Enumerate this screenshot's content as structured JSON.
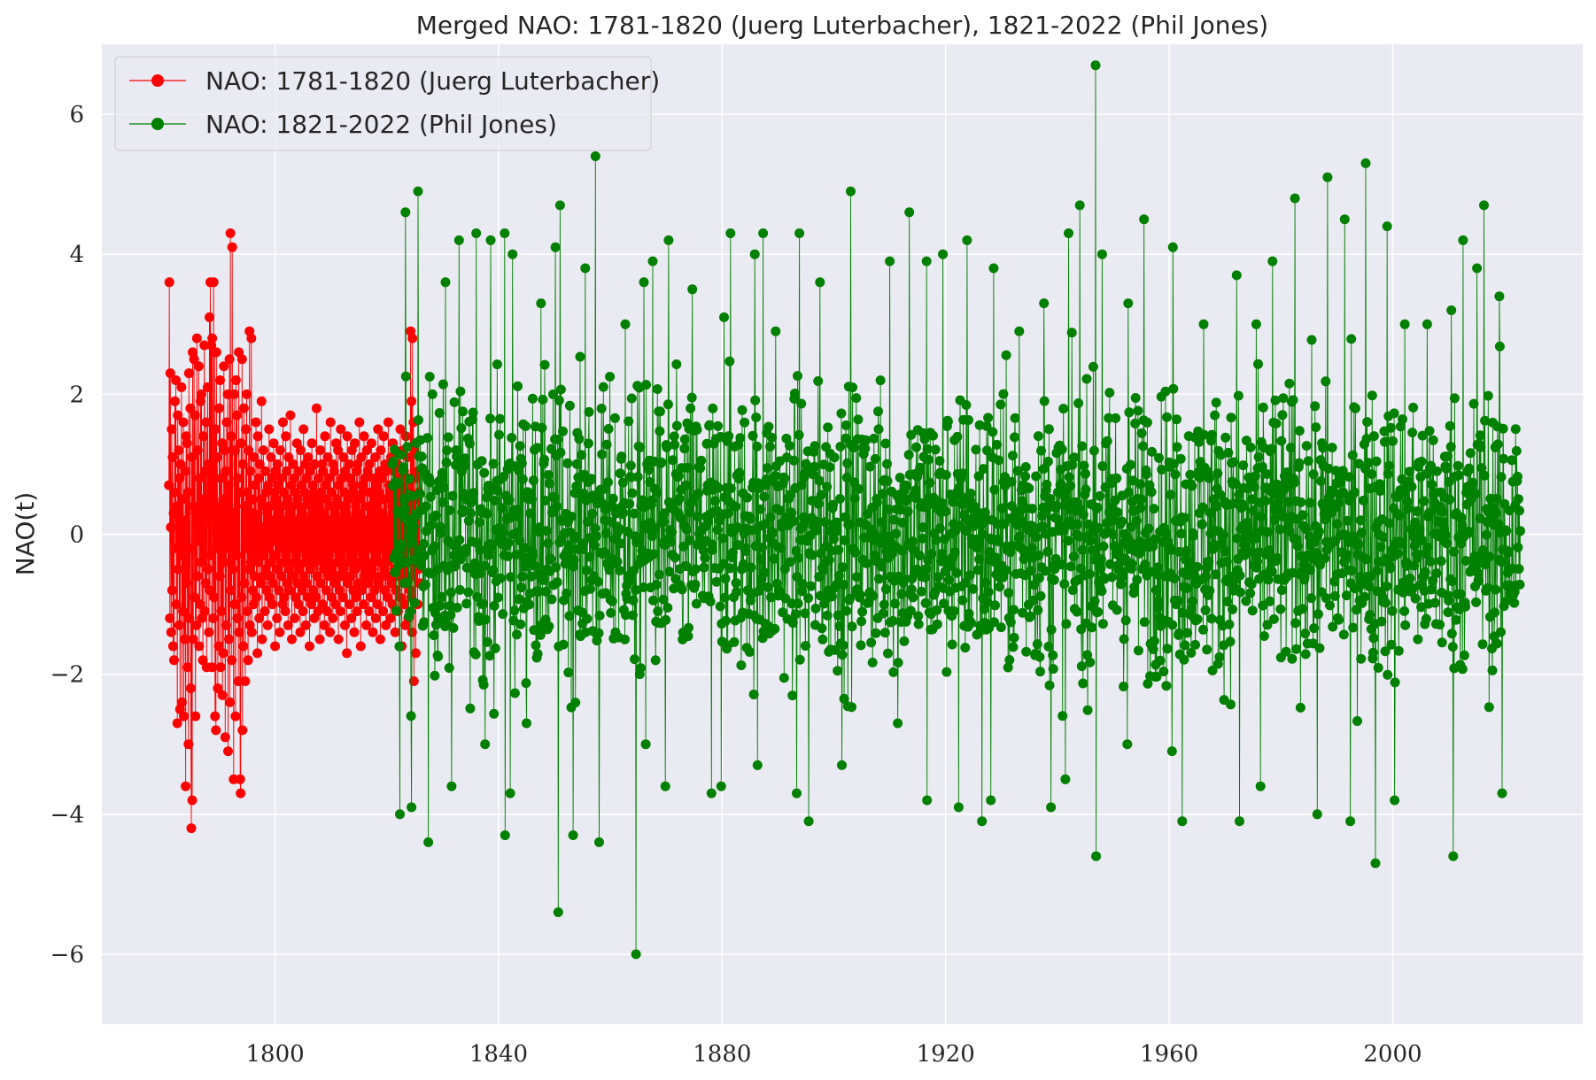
{
  "chart_data": {
    "type": "line",
    "title": "Merged NAO: 1781-1820 (Juerg Luterbacher), 1821-2022 (Phil Jones)",
    "xlabel": "",
    "ylabel": "NAO(t)",
    "xlim": [
      1769,
      2034
    ],
    "ylim": [
      -7,
      7
    ],
    "x_ticks": [
      1800,
      1840,
      1880,
      1920,
      1960,
      2000
    ],
    "y_ticks": [
      6,
      4,
      2,
      0,
      -2,
      -4,
      -6
    ],
    "y_tick_labels": [
      "6",
      "4",
      "2",
      "0",
      "−2",
      "−4",
      "−6"
    ],
    "grid": true,
    "legend_position": "top-left",
    "series": [
      {
        "name": "NAO: 1781-1820 (Juerg Luterbacher)",
        "color": "#ff0000",
        "x_start": 1781,
        "x_step": 0.0833333,
        "values": [
          0.7,
          3.6,
          -1.2,
          2.3,
          0.1,
          -1.4,
          1.5,
          -0.8,
          1.1,
          -1.6,
          0.3,
          -1.8,
          0.6,
          1.9,
          -0.2,
          2.2,
          -1.0,
          0.4,
          -2.7,
          1.7,
          -0.5,
          1.2,
          -1.3,
          0.8,
          -2.5,
          1.0,
          -0.3,
          2.1,
          -2.4,
          0.5,
          -1.1,
          1.6,
          -2.6,
          0.2,
          -1.5,
          0.9,
          -3.6,
          1.4,
          -0.7,
          1.3,
          -1.9,
          0.6,
          -3.0,
          2.3,
          -1.2,
          -0.2,
          1.8,
          -2.2,
          -4.2,
          1.1,
          -3.8,
          2.6,
          -1.5,
          0.4,
          2.5,
          -0.9,
          1.7,
          -2.6,
          0.3,
          -1.3,
          2.8,
          -0.6,
          1.2,
          -0.1,
          2.4,
          -1.6,
          0.8,
          -1.0,
          1.9,
          -0.4,
          2.0,
          -1.2,
          0.5,
          -1.8,
          1.4,
          -0.3,
          2.7,
          -1.1,
          0.9,
          -0.7,
          1.6,
          -1.9,
          0.2,
          2.1,
          -0.5,
          1.0,
          -1.4,
          3.1,
          -0.8,
          3.6,
          -0.3,
          2.7,
          -1.9,
          2.8,
          0.6,
          -1.2,
          3.6,
          -0.9,
          2.6,
          -2.6,
          1.5,
          -2.8,
          2.6,
          -0.2,
          1.1,
          -2.2,
          0.4,
          -1.6,
          1.8,
          -0.6,
          2.2,
          -1.9,
          0.8,
          -1.1,
          1.3,
          -2.3,
          0.5,
          -1.7,
          2.4,
          -0.4,
          1.2,
          -2.9,
          0.9,
          -1.3,
          1.6,
          -0.2,
          2.0,
          -3.1,
          0.7,
          -1.5,
          2.5,
          -2.4,
          4.3,
          -0.8,
          1.4,
          -1.8,
          4.1,
          -0.5,
          0.3,
          -3.5,
          2.0,
          -1.0,
          1.2,
          -2.6,
          2.2,
          -0.3,
          1.7,
          -1.2,
          0.8,
          -2.1,
          2.6,
          -1.4,
          0.6,
          -3.5,
          -3.7,
          1.3,
          -0.9,
          2.5,
          -2.8,
          1.0,
          -1.6,
          1.8,
          -0.7,
          0.4,
          -2.1,
          1.5,
          -0.2,
          2.0,
          -1.1,
          0.6,
          -1.8,
          1.2,
          -0.5,
          2.9,
          -1.3,
          0.9,
          -0.4,
          2.8,
          -1.4,
          0.5,
          -0.8,
          0.3,
          -1.0,
          1.1,
          -0.6,
          0.7,
          -0.3,
          1.6,
          -0.9,
          0.2,
          -1.7,
          1.4,
          -0.4,
          0.8,
          -1.2,
          1.0,
          -0.2,
          0.5,
          -0.7,
          1.9,
          -1.5,
          0.1,
          -0.6,
          1.2,
          -0.3,
          0.4,
          -1.1,
          0.9,
          -0.5,
          0.6,
          -0.8,
          0.3,
          -1.3,
          0.7,
          -0.2,
          1.5,
          -0.9,
          0.4,
          -0.6,
          1.1,
          -0.4,
          0.8,
          -1.0,
          0.2,
          -0.7,
          1.3,
          -0.1,
          0.6,
          -1.6,
          0.9,
          -0.3,
          0.5,
          -1.2,
          1.0,
          -0.5,
          0.7,
          -0.8,
          0.3,
          -1.4,
          1.2,
          -0.2,
          0.8,
          -0.6,
          0.4,
          -1.0,
          1.6,
          -0.4,
          0.6,
          -0.9,
          0.2,
          -1.1,
          1.4,
          -0.3,
          0.9,
          -0.7,
          0.5,
          -1.3,
          1.1,
          -0.5,
          0.3,
          -0.8,
          1.7,
          -0.2,
          0.7,
          -1.5,
          0.4,
          -0.6,
          1.0,
          -0.4,
          0.8,
          -1.2,
          0.6,
          -0.9,
          0.2,
          -0.3,
          1.3,
          -0.7,
          0.5,
          -1.0,
          0.9,
          -0.5,
          0.4,
          -1.4,
          1.2,
          -0.2,
          0.7,
          -0.8,
          0.3,
          -1.1,
          1.5,
          -0.6,
          0.6,
          -0.4,
          1.0,
          -1.3,
          0.8,
          -0.7,
          0.2,
          -0.9,
          1.1,
          -0.3,
          0.5,
          -1.6,
          0.9,
          -0.5,
          0.4,
          -1.0,
          1.3,
          -0.2,
          0.7,
          -0.8,
          0.6,
          -1.2,
          1.0,
          -0.4,
          0.3,
          -0.9,
          1.8,
          -0.6,
          0.5,
          -1.1,
          0.8,
          -0.3,
          0.4,
          -1.5,
          1.2,
          -0.7,
          0.6,
          -0.2,
          1.0,
          -1.0,
          0.9,
          -0.5,
          0.3,
          -1.3,
          1.4,
          -0.4,
          0.7,
          -0.8,
          0.5,
          -1.1,
          1.1,
          -0.6,
          0.8,
          -0.3,
          0.2,
          -1.4,
          1.6,
          -0.5,
          0.6,
          -0.9,
          0.4,
          -1.2,
          1.0,
          -0.2,
          0.9,
          -0.7,
          0.3,
          -1.0,
          1.3,
          -0.6,
          0.5,
          -0.4,
          1.2,
          -1.5,
          0.7,
          -0.8,
          0.2,
          -1.1,
          1.5,
          -0.3,
          0.8,
          -0.6,
          0.4,
          -0.9,
          1.1,
          -0.5,
          0.6,
          -1.3,
          0.9,
          -0.2,
          0.3,
          -1.7,
          1.4,
          -0.7,
          0.5,
          -0.4,
          1.0,
          -1.0,
          0.8,
          -0.6,
          0.2,
          -1.2,
          1.2,
          -0.3,
          0.7,
          -0.8,
          0.6,
          -1.4,
          1.3,
          -0.5,
          0.4,
          -0.9,
          0.9,
          -1.1,
          1.0,
          -0.2,
          0.5,
          -0.7,
          1.6,
          -0.4,
          0.3,
          -1.6,
          1.1,
          -0.8,
          0.7,
          -0.3,
          0.6,
          -1.0,
          1.4,
          -0.6,
          0.8,
          -0.5,
          0.2,
          -1.3,
          1.2,
          -0.4,
          0.9,
          -0.7,
          0.4,
          -1.1,
          1.0,
          -0.2,
          0.6,
          -0.9,
          1.3,
          -0.5,
          0.3,
          -1.4,
          0.8,
          -0.6,
          0.5,
          -0.8,
          1.1,
          -1.2,
          0.7,
          -0.3,
          0.4,
          -1.0,
          1.5,
          -0.7,
          0.6,
          -0.4,
          0.9,
          -1.5,
          1.2,
          -0.2,
          0.8,
          -0.6,
          0.3,
          -1.1,
          1.4,
          -0.5,
          0.5,
          -0.8,
          1.0,
          -1.3,
          0.9,
          -0.4,
          0.2,
          -0.9,
          1.6,
          -0.6,
          0.7,
          -0.3,
          0.6,
          -1.2,
          1.1,
          -0.7,
          0.4,
          -1.0,
          1.3,
          -0.2,
          0.9,
          -0.5,
          0.5,
          -1.4,
          1.2,
          -0.8,
          0.3,
          -0.6,
          1.0,
          -1.1,
          0.8,
          -0.4,
          0.6,
          -0.9,
          1.5,
          -0.3,
          0.7,
          -1.6,
          0.4,
          -0.5,
          1.2,
          -0.7,
          0.9,
          -1.0,
          0.2,
          -1.3,
          1.4,
          -0.6,
          0.6,
          -0.4,
          1.1,
          -1.2,
          0.8,
          -0.2,
          0.5,
          -0.8,
          2.9,
          -0.9,
          1.9,
          -1.4,
          2.8,
          -0.6,
          1.6,
          -2.1,
          1.2,
          -0.3,
          0.5,
          -1.7,
          0.8,
          -0.4,
          0.3,
          -1.0,
          0.9,
          -0.5,
          0.6,
          -0.7
        ]
      },
      {
        "name": "NAO: 1821-2022 (Phil Jones)",
        "color": "#008000",
        "x_start": 1821,
        "x_step": 0.0833333,
        "peaks": [
          {
            "x": 1823.3,
            "y": 4.6
          },
          {
            "x": 1825.6,
            "y": 4.9
          },
          {
            "x": 1830.5,
            "y": 3.6
          },
          {
            "x": 1832.9,
            "y": 4.2
          },
          {
            "x": 1836.0,
            "y": 4.3
          },
          {
            "x": 1838.6,
            "y": 4.2
          },
          {
            "x": 1841.1,
            "y": 4.3
          },
          {
            "x": 1842.5,
            "y": 4.0
          },
          {
            "x": 1847.6,
            "y": 3.3
          },
          {
            "x": 1850.2,
            "y": 4.1
          },
          {
            "x": 1851.0,
            "y": 4.7
          },
          {
            "x": 1855.5,
            "y": 3.8
          },
          {
            "x": 1857.3,
            "y": 5.4
          },
          {
            "x": 1862.7,
            "y": 3.0
          },
          {
            "x": 1866.0,
            "y": 3.6
          },
          {
            "x": 1867.6,
            "y": 3.9
          },
          {
            "x": 1870.4,
            "y": 4.2
          },
          {
            "x": 1874.7,
            "y": 3.5
          },
          {
            "x": 1880.3,
            "y": 3.1
          },
          {
            "x": 1881.5,
            "y": 4.3
          },
          {
            "x": 1885.8,
            "y": 4.0
          },
          {
            "x": 1887.3,
            "y": 4.3
          },
          {
            "x": 1889.6,
            "y": 2.9
          },
          {
            "x": 1893.8,
            "y": 4.3
          },
          {
            "x": 1897.5,
            "y": 3.6
          },
          {
            "x": 1903.0,
            "y": 4.9
          },
          {
            "x": 1910.0,
            "y": 3.9
          },
          {
            "x": 1913.5,
            "y": 4.6
          },
          {
            "x": 1916.6,
            "y": 3.9
          },
          {
            "x": 1919.5,
            "y": 4.0
          },
          {
            "x": 1923.8,
            "y": 4.2
          },
          {
            "x": 1928.6,
            "y": 3.8
          },
          {
            "x": 1933.2,
            "y": 2.9
          },
          {
            "x": 1937.6,
            "y": 3.3
          },
          {
            "x": 1942.0,
            "y": 4.3
          },
          {
            "x": 1944.0,
            "y": 4.7
          },
          {
            "x": 1946.8,
            "y": 6.7
          },
          {
            "x": 1948.0,
            "y": 4.0
          },
          {
            "x": 1952.7,
            "y": 3.3
          },
          {
            "x": 1955.5,
            "y": 4.5
          },
          {
            "x": 1960.7,
            "y": 4.1
          },
          {
            "x": 1966.2,
            "y": 3.0
          },
          {
            "x": 1972.1,
            "y": 3.7
          },
          {
            "x": 1975.6,
            "y": 3.0
          },
          {
            "x": 1978.5,
            "y": 3.9
          },
          {
            "x": 1982.5,
            "y": 4.8
          },
          {
            "x": 1988.3,
            "y": 5.1
          },
          {
            "x": 1991.4,
            "y": 4.5
          },
          {
            "x": 1995.2,
            "y": 5.3
          },
          {
            "x": 1999.0,
            "y": 4.4
          },
          {
            "x": 2002.2,
            "y": 3.0
          },
          {
            "x": 2006.2,
            "y": 3.0
          },
          {
            "x": 2010.5,
            "y": 3.2
          },
          {
            "x": 2012.6,
            "y": 4.2
          },
          {
            "x": 2015.1,
            "y": 3.8
          },
          {
            "x": 2016.3,
            "y": 4.7
          },
          {
            "x": 2019.1,
            "y": 3.4
          }
        ],
        "troughs": [
          {
            "x": 1822.3,
            "y": -4.0
          },
          {
            "x": 1824.4,
            "y": -3.9
          },
          {
            "x": 1827.4,
            "y": -4.4
          },
          {
            "x": 1831.6,
            "y": -3.6
          },
          {
            "x": 1837.6,
            "y": -3.0
          },
          {
            "x": 1841.2,
            "y": -4.3
          },
          {
            "x": 1842.1,
            "y": -3.7
          },
          {
            "x": 1845.0,
            "y": -2.7
          },
          {
            "x": 1850.7,
            "y": -5.4
          },
          {
            "x": 1853.3,
            "y": -4.3
          },
          {
            "x": 1858.0,
            "y": -4.4
          },
          {
            "x": 1864.6,
            "y": -6.0
          },
          {
            "x": 1866.3,
            "y": -3.0
          },
          {
            "x": 1869.8,
            "y": -3.6
          },
          {
            "x": 1878.1,
            "y": -3.7
          },
          {
            "x": 1879.8,
            "y": -3.6
          },
          {
            "x": 1886.3,
            "y": -3.3
          },
          {
            "x": 1893.3,
            "y": -3.7
          },
          {
            "x": 1895.5,
            "y": -4.1
          },
          {
            "x": 1901.4,
            "y": -3.3
          },
          {
            "x": 1911.4,
            "y": -2.7
          },
          {
            "x": 1916.7,
            "y": -3.8
          },
          {
            "x": 1922.3,
            "y": -3.9
          },
          {
            "x": 1926.5,
            "y": -4.1
          },
          {
            "x": 1928.1,
            "y": -3.8
          },
          {
            "x": 1938.8,
            "y": -3.9
          },
          {
            "x": 1941.4,
            "y": -3.5
          },
          {
            "x": 1946.9,
            "y": -4.6
          },
          {
            "x": 1952.5,
            "y": -3.0
          },
          {
            "x": 1960.5,
            "y": -3.1
          },
          {
            "x": 1962.3,
            "y": -4.1
          },
          {
            "x": 1972.6,
            "y": -4.1
          },
          {
            "x": 1976.3,
            "y": -3.6
          },
          {
            "x": 1986.5,
            "y": -4.0
          },
          {
            "x": 1992.4,
            "y": -4.1
          },
          {
            "x": 1996.9,
            "y": -4.7
          },
          {
            "x": 2000.3,
            "y": -3.8
          },
          {
            "x": 2010.8,
            "y": -4.6
          },
          {
            "x": 2019.6,
            "y": -3.7
          }
        ]
      }
    ]
  }
}
